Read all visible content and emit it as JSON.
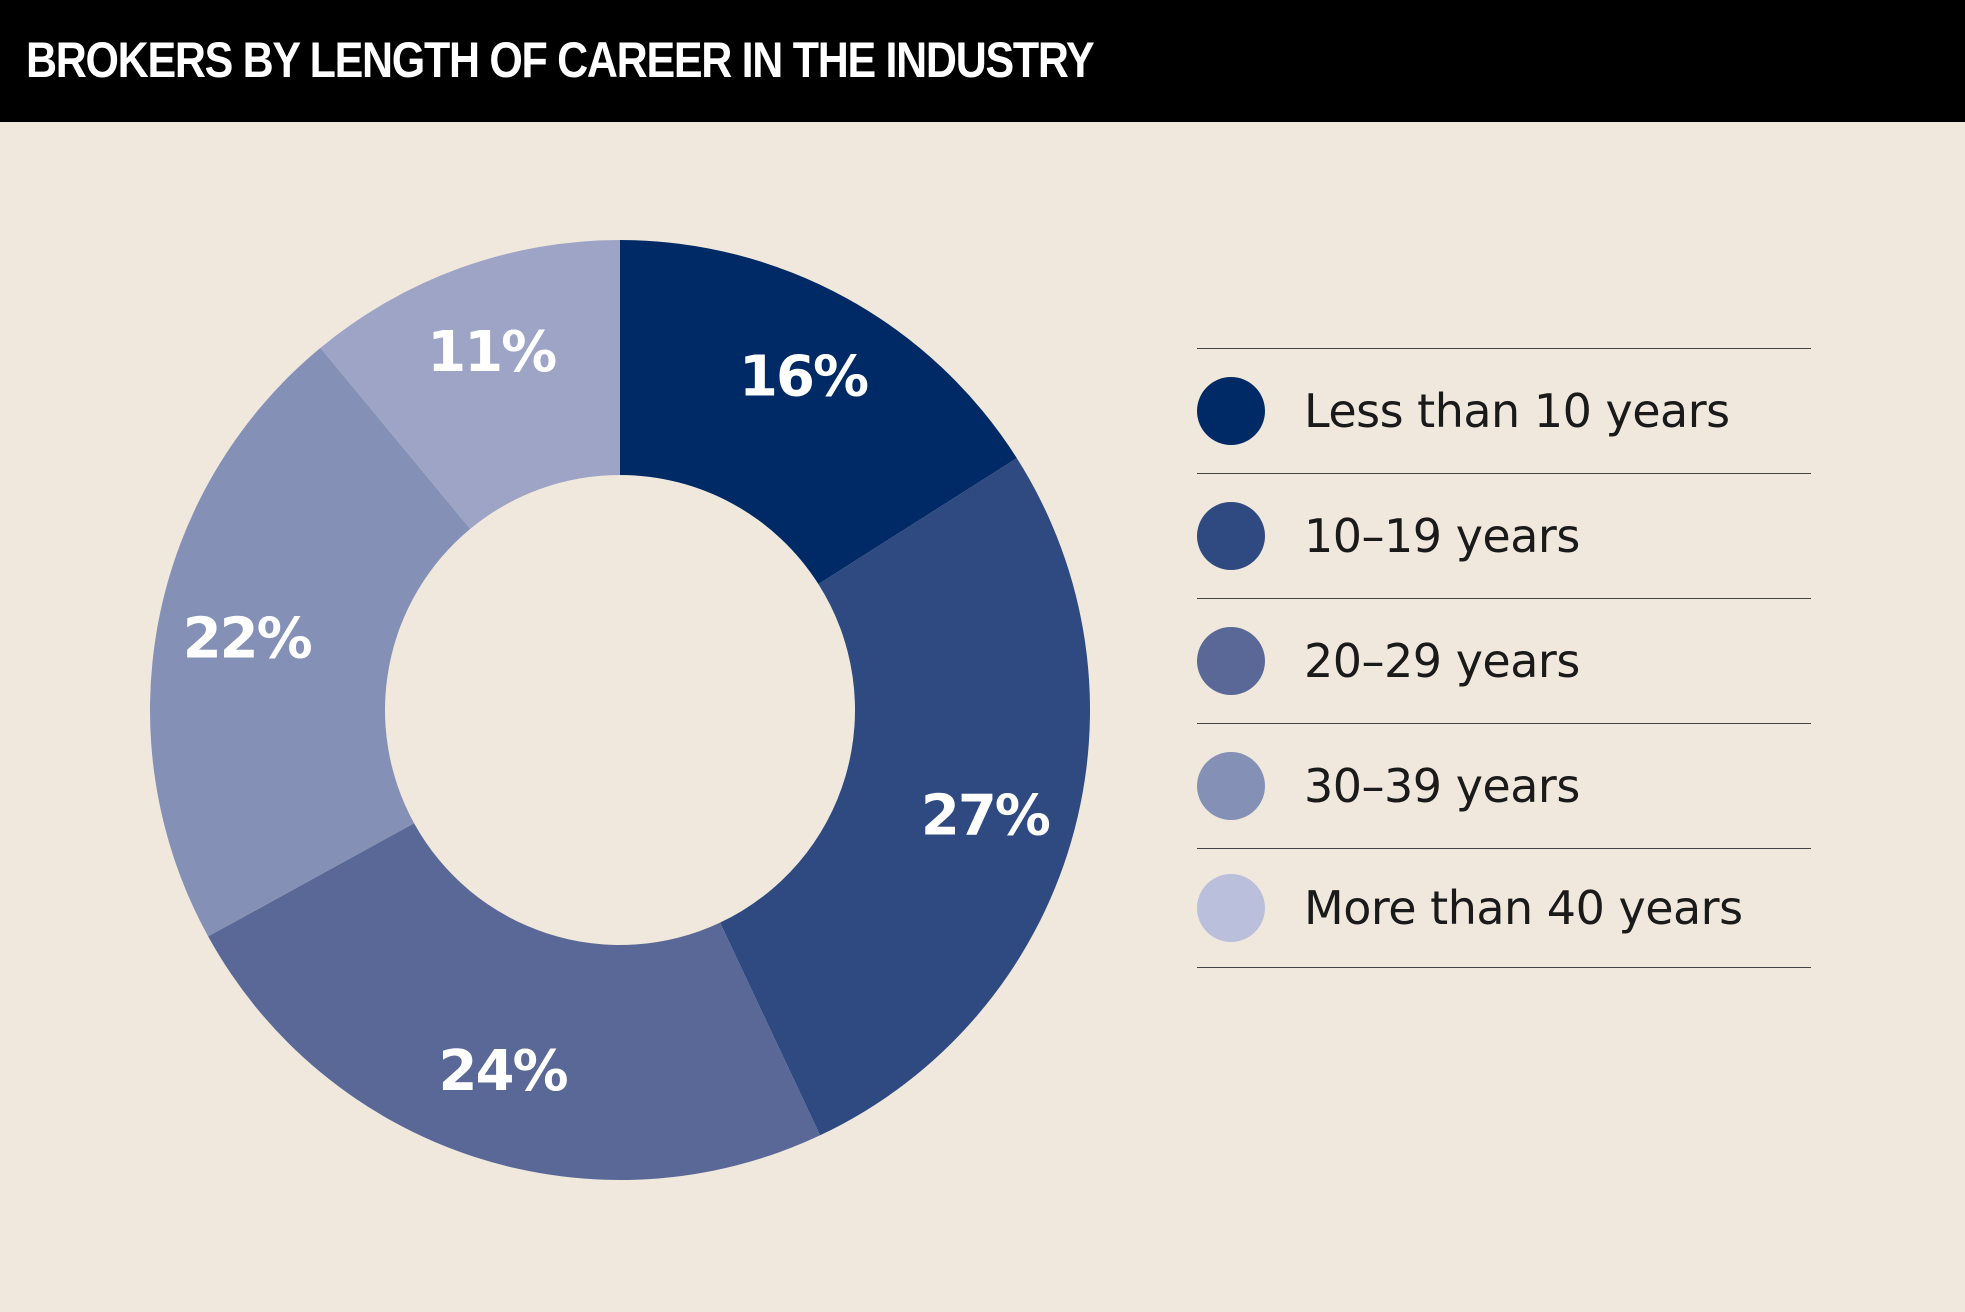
{
  "chart_data": {
    "type": "pie",
    "variant": "donut",
    "title": "BROKERS BY LENGTH OF CAREER IN THE INDUSTRY",
    "categories": [
      "Less than 10 years",
      "10–19 years",
      "20–29 years",
      "30–39 years",
      "More than 40 years"
    ],
    "values": [
      16,
      27,
      24,
      22,
      11
    ],
    "labels": [
      "16%",
      "27%",
      "24%",
      "22%",
      "11%"
    ],
    "colors": [
      "#002a66",
      "#2f4a80",
      "#596896",
      "#8590b6",
      "#9da4c6"
    ],
    "legend_colors": [
      "#002a66",
      "#2f4a80",
      "#596896",
      "#8590b6",
      "#bac0dc"
    ],
    "legend_position": "right",
    "start_angle": "12 o'clock",
    "direction": "clockwise"
  },
  "colors": {
    "background": "#f0e8dc",
    "header": "#000000",
    "title_text": "#ffffff"
  }
}
